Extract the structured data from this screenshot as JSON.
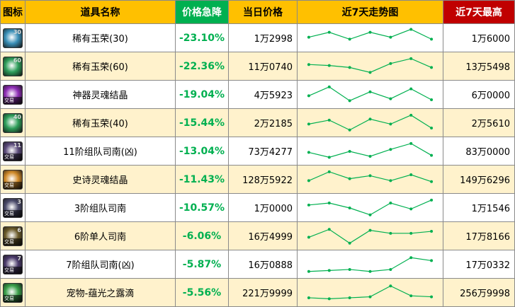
{
  "headers": {
    "icon": "图标",
    "name": "道具名称",
    "drop": "价格急降",
    "price": "当日价格",
    "trend": "近7天走势图",
    "max": "近7天最高"
  },
  "colors": {
    "header_bg": "#ffc000",
    "drop_header_bg": "#00b050",
    "max_header_bg": "#c00000",
    "drop_text": "#00b050",
    "row_alt_bg": "#fff2cc",
    "trend_line": "#00b050"
  },
  "rows": [
    {
      "icon": "jade-orb-icon",
      "icon_level": "30",
      "icon_tag": "",
      "icon_color": "#3a8fb7",
      "name": "稀有玉荣(30)",
      "drop": "-23.10%",
      "price": "1万2998",
      "max": "1万6000",
      "trend": [
        0.45,
        0.2,
        0.55,
        0.2,
        0.45,
        0.05,
        0.55
      ]
    },
    {
      "icon": "jade-orb-icon",
      "icon_level": "60",
      "icon_tag": "",
      "icon_color": "#2e9e5a",
      "name": "稀有玉荣(60)",
      "drop": "-22.36%",
      "price": "11万0740",
      "max": "13万5498",
      "trend": [
        0.4,
        0.45,
        0.55,
        0.8,
        0.35,
        0.1,
        0.55
      ]
    },
    {
      "icon": "artifact-soul-crystal-icon",
      "icon_level": "",
      "icon_tag": "交易",
      "icon_color": "#8e2db5",
      "name": "神器灵魂结晶",
      "drop": "-19.04%",
      "price": "4万5923",
      "max": "6万0000",
      "trend": [
        0.55,
        0.1,
        0.8,
        0.35,
        0.7,
        0.2,
        0.75
      ]
    },
    {
      "icon": "jade-orb-icon",
      "icon_level": "40",
      "icon_tag": "",
      "icon_color": "#2e9e5a",
      "name": "稀有玉荣(40)",
      "drop": "-15.44%",
      "price": "2万2185",
      "max": "2万5610",
      "trend": [
        0.55,
        0.35,
        0.85,
        0.3,
        0.55,
        0.1,
        0.75
      ]
    },
    {
      "icon": "team-compass-icon",
      "icon_level": "11",
      "icon_tag": "交易",
      "icon_color": "#5a4a7a",
      "name": "11阶组队司南(凶)",
      "drop": "-13.04%",
      "price": "73万4277",
      "max": "83万0000",
      "trend": [
        0.55,
        0.8,
        0.5,
        0.75,
        0.4,
        0.1,
        0.7
      ]
    },
    {
      "icon": "epic-soul-crystal-icon",
      "icon_level": "",
      "icon_tag": "交易",
      "icon_color": "#d08a2a",
      "name": "史诗灵魂结晶",
      "drop": "-11.43%",
      "price": "128万5922",
      "max": "149万6296",
      "trend": [
        0.55,
        0.1,
        0.45,
        0.3,
        0.55,
        0.25,
        0.6
      ]
    },
    {
      "icon": "team-compass-icon",
      "icon_level": "3",
      "icon_tag": "交易",
      "icon_color": "#4a4a6a",
      "name": "3阶组队司南",
      "drop": "-10.57%",
      "price": "1万0000",
      "max": "1万1546",
      "trend": [
        0.35,
        0.25,
        0.5,
        0.85,
        0.25,
        0.55,
        0.1
      ]
    },
    {
      "icon": "solo-compass-icon",
      "icon_level": "6",
      "icon_tag": "交易",
      "icon_color": "#6a5a2a",
      "name": "6阶单人司南",
      "drop": "-6.06%",
      "price": "16万4999",
      "max": "17万8166",
      "trend": [
        0.55,
        0.15,
        0.85,
        0.2,
        0.35,
        0.35,
        0.25
      ]
    },
    {
      "icon": "team-compass-icon",
      "icon_level": "7",
      "icon_tag": "交易",
      "icon_color": "#4a3a6a",
      "name": "7阶组队司南(凶)",
      "drop": "-5.87%",
      "price": "16万0888",
      "max": "17万0332",
      "trend": [
        0.85,
        0.8,
        0.75,
        0.85,
        0.75,
        0.15,
        0.3
      ]
    },
    {
      "icon": "pet-dew-drop-icon",
      "icon_level": "",
      "icon_tag": "交易",
      "icon_color": "#3aa04a",
      "name": "宠物-蕴光之露滴",
      "drop": "-5.56%",
      "price": "221万9999",
      "max": "256万9998",
      "trend": [
        0.75,
        0.8,
        0.75,
        0.7,
        0.15,
        0.65,
        0.7
      ]
    }
  ]
}
